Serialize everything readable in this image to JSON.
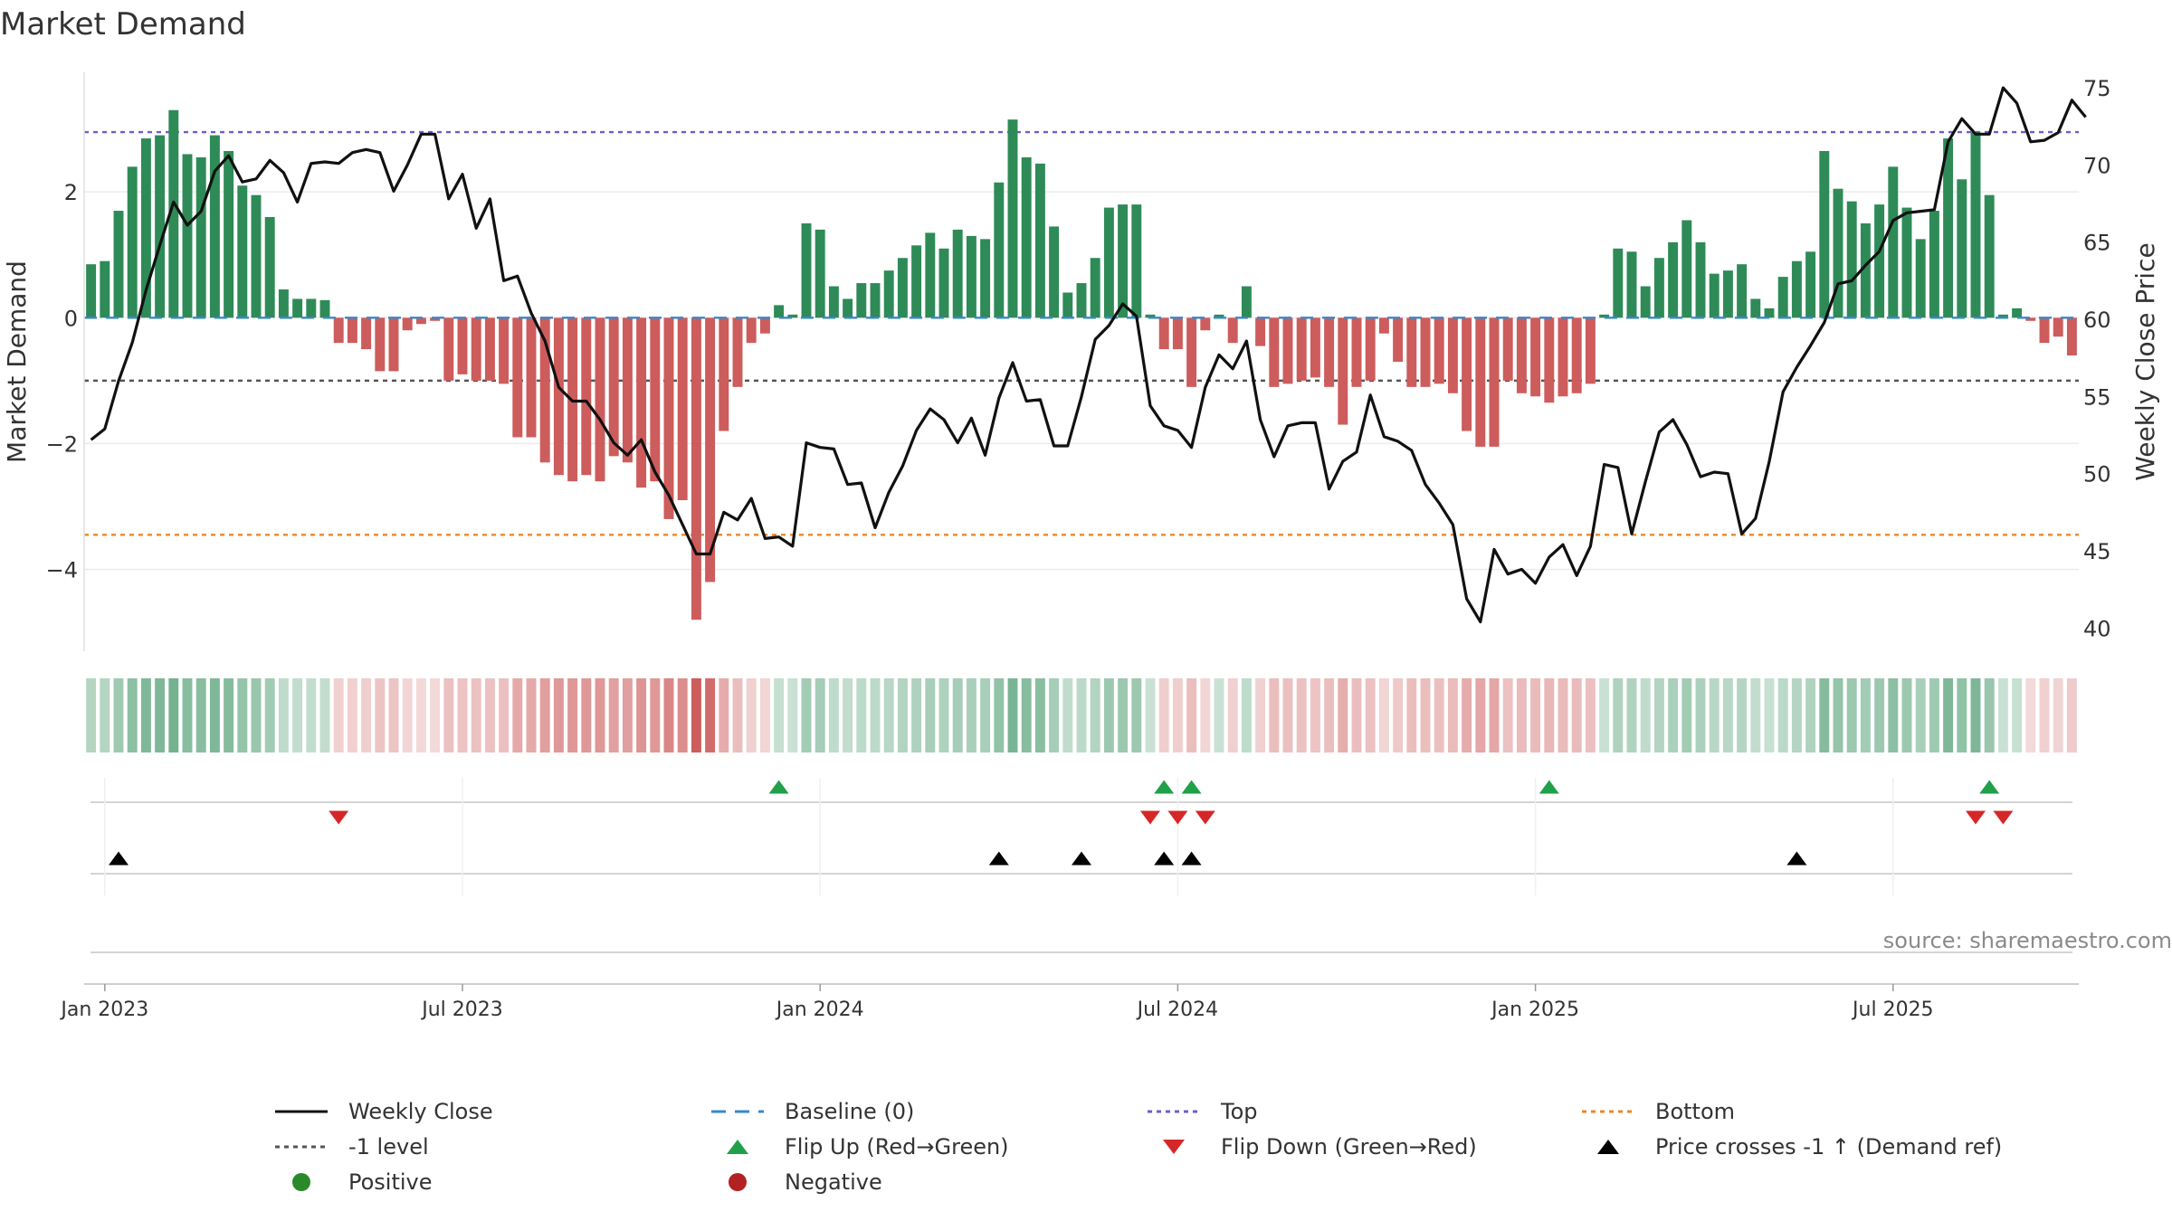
{
  "chart_data": {
    "type": "bar",
    "title": "Market Demand",
    "ylabel": "Market Demand",
    "y2label": "Weekly Close Price",
    "ylim": [
      -5.3,
      3.9
    ],
    "y2lim": [
      38.5,
      76.0
    ],
    "yticks": [
      2,
      0,
      -2,
      -4
    ],
    "ytick_labels": [
      "2",
      "0",
      "−2",
      "−4"
    ],
    "y2ticks": [
      75,
      70,
      65,
      60,
      55,
      50,
      45,
      40
    ],
    "y2tick_labels": [
      "75",
      "70",
      "65",
      "60",
      "55",
      "50",
      "45",
      "40"
    ],
    "x_start": "2022-12-26",
    "week_step": 1,
    "x_range_weeks": [
      -0.5,
      144.5
    ],
    "xtick_weeks": [
      1,
      27,
      53,
      79,
      105,
      131
    ],
    "xtick_labels": [
      "Jan 2023",
      "Jul 2023",
      "Jan 2024",
      "Jul 2024",
      "Jan 2025",
      "Jul 2025"
    ],
    "demand": [
      0.85,
      0.9,
      1.7,
      2.4,
      2.85,
      2.9,
      3.3,
      2.6,
      2.55,
      2.9,
      2.65,
      2.1,
      1.95,
      1.6,
      0.45,
      0.3,
      0.3,
      0.28,
      -0.4,
      -0.4,
      -0.5,
      -0.85,
      -0.85,
      -0.2,
      -0.1,
      -0.05,
      -1.0,
      -0.9,
      -1.0,
      -1.0,
      -1.05,
      -1.9,
      -1.9,
      -2.3,
      -2.5,
      -2.6,
      -2.5,
      -2.6,
      -2.2,
      -2.3,
      -2.7,
      -2.6,
      -3.2,
      -2.9,
      -4.8,
      -4.2,
      -1.8,
      -1.1,
      -0.4,
      -0.25,
      0.2,
      0.05,
      1.5,
      1.4,
      0.5,
      0.3,
      0.55,
      0.55,
      0.75,
      0.95,
      1.15,
      1.35,
      1.1,
      1.4,
      1.3,
      1.25,
      2.15,
      3.15,
      2.55,
      2.45,
      1.45,
      0.4,
      0.55,
      0.95,
      1.75,
      1.8,
      1.8,
      0.05,
      -0.5,
      -0.5,
      -1.1,
      -0.2,
      0.05,
      -0.4,
      0.5,
      -0.45,
      -1.1,
      -1.05,
      -1.0,
      -0.95,
      -1.1,
      -1.7,
      -1.1,
      -1.0,
      -0.25,
      -0.7,
      -1.1,
      -1.1,
      -1.05,
      -1.2,
      -1.8,
      -2.05,
      -2.05,
      -1.0,
      -1.2,
      -1.25,
      -1.35,
      -1.25,
      -1.2,
      -1.05,
      0.05,
      1.1,
      1.05,
      0.5,
      0.95,
      1.2,
      1.55,
      1.2,
      0.7,
      0.75,
      0.85,
      0.3,
      0.15,
      0.65,
      0.9,
      1.05,
      2.65,
      2.05,
      1.85,
      1.5,
      1.8,
      2.4,
      1.75,
      1.25,
      1.7,
      2.85,
      2.2,
      2.95,
      1.95,
      0.05,
      0.15,
      -0.05,
      -0.4,
      -0.3,
      -0.6
    ],
    "price": [
      52.2,
      52.9,
      56.0,
      58.5,
      61.9,
      64.8,
      67.6,
      66.1,
      67.0,
      69.6,
      70.6,
      68.9,
      69.1,
      70.3,
      69.5,
      67.6,
      70.1,
      70.2,
      70.1,
      70.8,
      71.0,
      70.8,
      68.3,
      70.0,
      72.0,
      72.0,
      67.8,
      69.4,
      65.9,
      67.8,
      62.5,
      62.8,
      60.4,
      58.6,
      55.6,
      54.7,
      54.7,
      53.5,
      52.0,
      51.2,
      52.2,
      50.1,
      48.6,
      46.7,
      44.8,
      44.8,
      47.5,
      47.0,
      48.4,
      45.8,
      45.9,
      45.3,
      52.0,
      51.7,
      51.6,
      49.3,
      49.4,
      46.5,
      48.8,
      50.5,
      52.8,
      54.2,
      53.5,
      52.0,
      53.6,
      51.2,
      54.9,
      57.2,
      54.7,
      54.8,
      51.8,
      51.8,
      55.0,
      58.7,
      59.6,
      61.0,
      60.2,
      54.4,
      53.1,
      52.8,
      51.7,
      55.6,
      57.7,
      56.8,
      58.6,
      53.5,
      51.1,
      53.1,
      53.3,
      53.3,
      49.0,
      50.8,
      51.4,
      55.1,
      52.4,
      52.1,
      51.5,
      49.3,
      48.1,
      46.7,
      41.9,
      40.4,
      45.1,
      43.5,
      43.8,
      42.9,
      44.6,
      45.4,
      43.4,
      45.3,
      50.6,
      50.4,
      46.1,
      49.5,
      52.7,
      53.5,
      51.9,
      49.8,
      50.1,
      50.0,
      46.1,
      47.1,
      50.8,
      55.3,
      56.9,
      58.3,
      59.8,
      62.3,
      62.5,
      63.5,
      64.4,
      66.4,
      66.9,
      67.0,
      67.1,
      71.5,
      73.0,
      72.0,
      72.0,
      75.0,
      74.0,
      71.5,
      71.6,
      72.1,
      74.2,
      73.1
    ],
    "reference_lines": [
      {
        "name": "Top",
        "value": 2.95,
        "color": "#6b5fc7",
        "style": "dotted"
      },
      {
        "name": "-1 level",
        "value": -1.0,
        "color": "#555555",
        "style": "dotted"
      },
      {
        "name": "Bottom",
        "value": -3.45,
        "color": "#e8882a",
        "style": "dotted"
      },
      {
        "name": "Baseline (0)",
        "value": 0,
        "color": "#3a87c8",
        "style": "dashed"
      }
    ],
    "flip_up_weeks": [
      50,
      78,
      80,
      106,
      138
    ],
    "flip_down_weeks": [
      18,
      77,
      79,
      81,
      137,
      139
    ],
    "price_cross_weeks": [
      2,
      66,
      72,
      78,
      80,
      124
    ],
    "colors": {
      "positive": "#2e8b57",
      "negative": "#cd5c5c",
      "price_line": "#111111",
      "flip_up": "#21a04a",
      "flip_down": "#d62728",
      "cross": "#000000"
    },
    "source_note": "source: sharemaestro.com"
  },
  "legend": {
    "items": [
      {
        "label": "Weekly Close",
        "symbol": "line-solid",
        "color": "#111111"
      },
      {
        "label": "Baseline (0)",
        "symbol": "line-dashed",
        "color": "#3a87c8"
      },
      {
        "label": "Top",
        "symbol": "line-dotted",
        "color": "#6b5fc7"
      },
      {
        "label": "Bottom",
        "symbol": "line-dotted",
        "color": "#e8882a"
      },
      {
        "label": "-1 level",
        "symbol": "line-dotted",
        "color": "#555555"
      },
      {
        "label": "Flip Up (Red→Green)",
        "symbol": "triangle-up",
        "color": "#21a04a"
      },
      {
        "label": "Flip Down (Green→Red)",
        "symbol": "triangle-down",
        "color": "#d62728"
      },
      {
        "label": "Price crosses -1 ↑ (Demand ref)",
        "symbol": "triangle-up",
        "color": "#000000"
      },
      {
        "label": "Positive",
        "symbol": "circle",
        "color": "#2a8a2a"
      },
      {
        "label": "Negative",
        "symbol": "circle",
        "color": "#b22222"
      }
    ]
  }
}
